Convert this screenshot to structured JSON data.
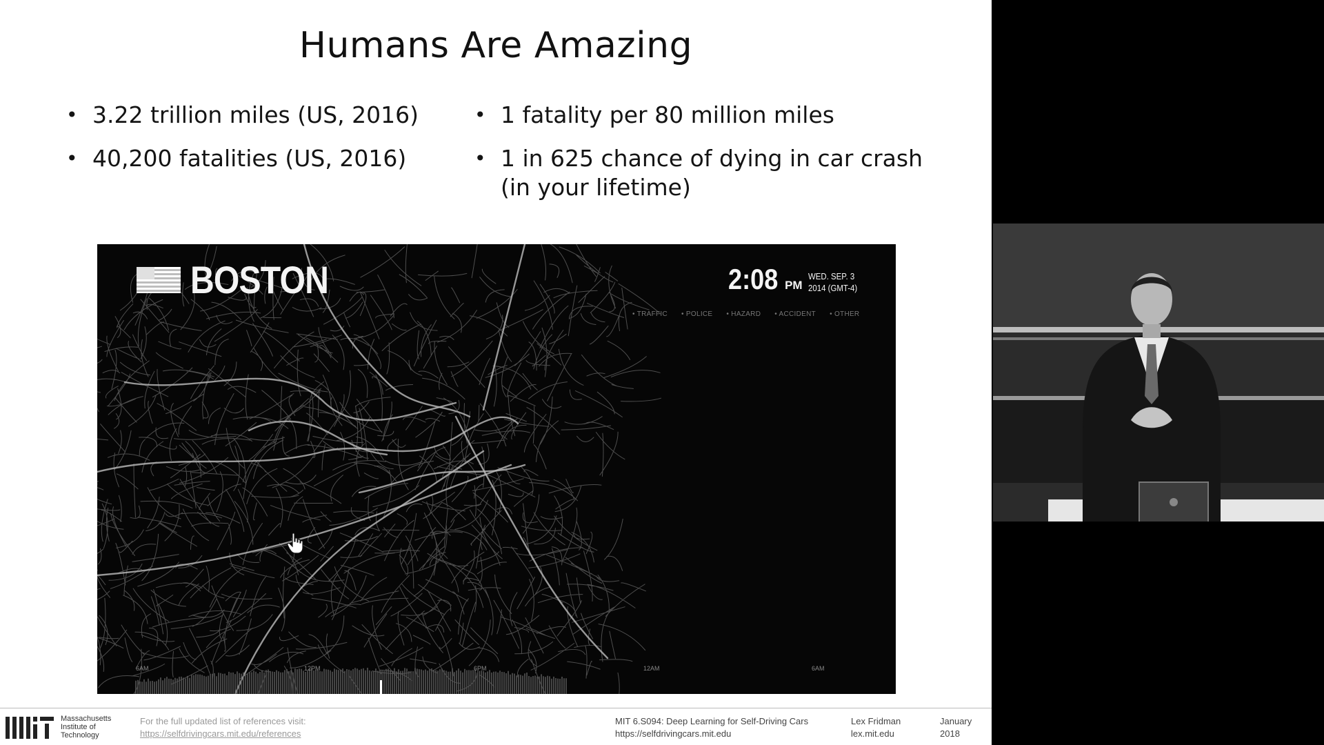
{
  "slide": {
    "title": "Humans Are Amazing",
    "bullets_left": [
      "3.22 trillion miles (US, 2016)",
      "40,200 fatalities (US, 2016)"
    ],
    "bullets_right": [
      "1 fatality per 80 million miles",
      "1 in 625 chance of dying in car crash (in your lifetime)"
    ]
  },
  "video": {
    "flag_icon": "us-flag-icon",
    "city": "BOSTON",
    "time": "2:08",
    "ampm": "PM",
    "date_line1": "WED. SEP. 3",
    "date_line2": "2014 (GMT-4)",
    "legend": [
      "TRAFFIC",
      "POLICE",
      "HAZARD",
      "ACCIDENT",
      "OTHER"
    ],
    "timeline": [
      "6AM",
      "12PM",
      "6PM",
      "12AM",
      "6AM"
    ],
    "cursor_icon": "hand-pointer-icon"
  },
  "footer": {
    "logo_icon": "mit-logo-icon",
    "institution": [
      "Massachusetts",
      "Institute of",
      "Technology"
    ],
    "refs_label": "For the full updated list of references visit:",
    "refs_url": "https://selfdrivingcars.mit.edu/references",
    "course_name": "MIT 6.S094: Deep Learning for Self-Driving Cars",
    "course_url": "https://selfdrivingcars.mit.edu",
    "author_name": "Lex Fridman",
    "author_url": "lex.mit.edu",
    "month": "January",
    "year": "2018"
  },
  "speaker": {
    "icon": "presenter-camera-icon"
  },
  "colors": {
    "slide_bg": "#ffffff",
    "map_bg": "#060606",
    "road": "#8a8a8a",
    "right_panel": "#000000"
  }
}
